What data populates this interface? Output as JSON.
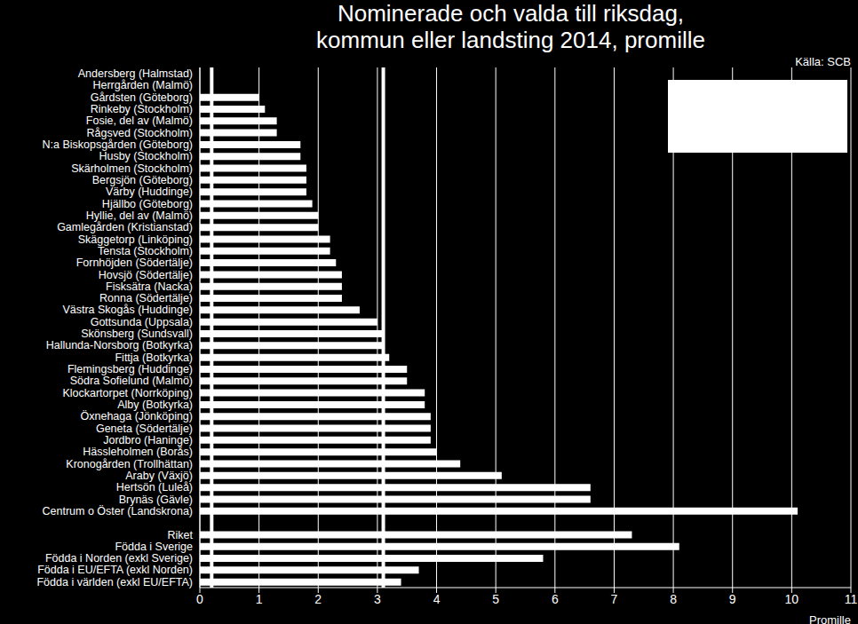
{
  "chart_data": {
    "type": "bar",
    "orientation": "horizontal",
    "title": "Nominerade och valda till riksdag, kommun eller landsting 2014, promille",
    "source": "Källa: SCB",
    "x_label": "Promille",
    "categories": [
      "Andersberg (Halmstad)",
      "Herrgården (Malmö)",
      "Gårdsten (Göteborg)",
      "Rinkeby (Stockholm)",
      "Fosie, del av (Malmö)",
      "Rågsved (Stockholm)",
      "N:a Biskopsgården (Göteborg)",
      "Husby (Stockholm)",
      "Skärholmen (Stockholm)",
      "Bergsjön (Göteborg)",
      "Värby (Huddinge)",
      "Hjällbo (Göteborg)",
      "Hyllie, del av (Malmö)",
      "Gamlegården (Kristianstad)",
      "Skäggetorp (Linköping)",
      "Tensta (Stockholm)",
      "Fornhöjden (Södertälje)",
      "Hovsjö (Södertälje)",
      "Fisksätra (Nacka)",
      "Ronna (Södertälje)",
      "Västra Skogås (Huddinge)",
      "Gottsunda (Uppsala)",
      "Skönsberg (Sundsvall)",
      "Hallunda-Norsborg (Botkyrka)",
      "Fittja (Botkyrka)",
      "Flemingsberg (Huddinge)",
      "Södra Sofielund (Malmö)",
      "Klockartorpet (Norrköping)",
      "Alby (Botkyrka)",
      "Öxnehaga (Jönköping)",
      "Geneta (Södertälje)",
      "Jordbro (Haninge)",
      "Hässleholmen (Borås)",
      "Kronogården (Trollhättan)",
      "Araby (Växjö)",
      "Hertsön (Luleå)",
      "Brynäs (Gävle)",
      "Centrum o Öster (Landskrona)",
      null,
      "Riket",
      "Födda i Sverige",
      "Födda i Norden (exkl Sverige)",
      "Födda i EU/EFTA (exkl Norden)",
      "Födda i världen (exkl EU/EFTA)"
    ],
    "values": [
      0,
      0,
      1.0,
      1.1,
      1.3,
      1.3,
      1.7,
      1.7,
      1.8,
      1.8,
      1.8,
      1.9,
      2.0,
      2.0,
      2.2,
      2.2,
      2.3,
      2.4,
      2.4,
      2.4,
      2.7,
      3.0,
      3.1,
      3.1,
      3.2,
      3.5,
      3.5,
      3.8,
      3.8,
      3.9,
      3.9,
      3.9,
      4.0,
      4.4,
      5.1,
      6.6,
      6.6,
      10.1,
      null,
      7.3,
      8.1,
      5.8,
      3.7,
      3.4
    ],
    "color": "#ffffff",
    "reference_lines": [
      0.2,
      3.1
    ],
    "xlim": [
      0,
      11
    ],
    "xticks": [
      0,
      1,
      2,
      3,
      4,
      5,
      6,
      7,
      8,
      9,
      10,
      11
    ],
    "grid": true
  }
}
